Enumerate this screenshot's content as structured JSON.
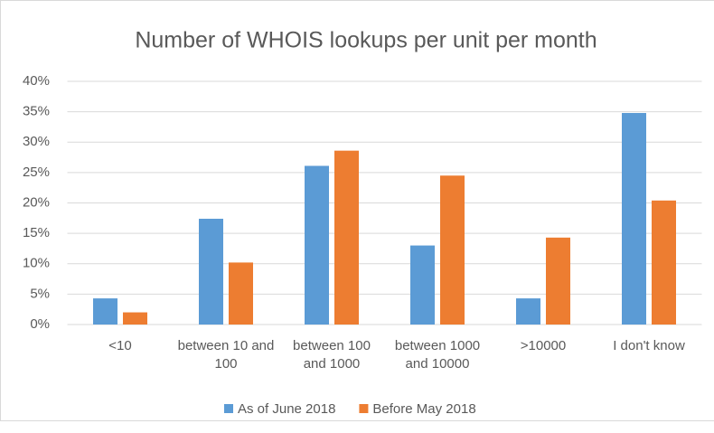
{
  "chart_data": {
    "type": "bar",
    "title": "Number of WHOIS lookups per unit per month",
    "categories": [
      "<10",
      "between 10 and 100",
      "between 100 and 1000",
      "between 1000 and 10000",
      ">10000",
      "I don't know"
    ],
    "series": [
      {
        "name": "As of June 2018",
        "color": "#5b9bd5",
        "values": [
          4.3,
          17.4,
          26.1,
          13.0,
          4.3,
          34.8
        ]
      },
      {
        "name": "Before May 2018",
        "color": "#ed7d31",
        "values": [
          2.0,
          10.2,
          28.6,
          24.5,
          14.3,
          20.4
        ]
      }
    ],
    "ylim": [
      0,
      40
    ],
    "yticks": [
      {
        "value": 0,
        "label": "0%"
      },
      {
        "value": 5,
        "label": "5%"
      },
      {
        "value": 10,
        "label": "10%"
      },
      {
        "value": 15,
        "label": "15%"
      },
      {
        "value": 20,
        "label": "20%"
      },
      {
        "value": 25,
        "label": "25%"
      },
      {
        "value": 30,
        "label": "30%"
      },
      {
        "value": 35,
        "label": "35%"
      },
      {
        "value": 40,
        "label": "40%"
      }
    ],
    "grid": true,
    "legend": "bottom"
  }
}
